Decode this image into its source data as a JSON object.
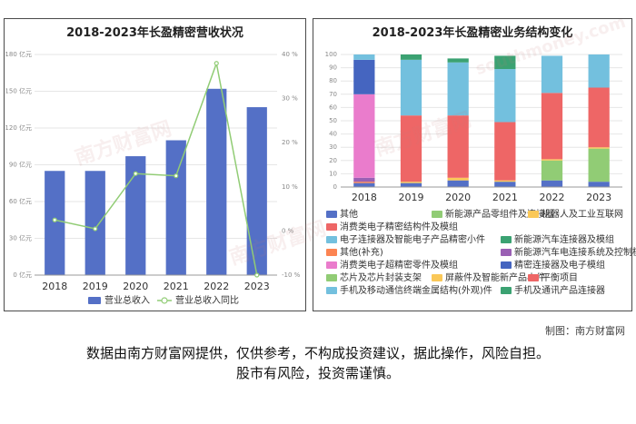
{
  "watermark": {
    "text": "南方财富网",
    "sub": "southmoney.com"
  },
  "left_chart": {
    "title": "2018-2023年长盈精密营收状况",
    "legend": [
      "营业总收入",
      "营业总收入同比"
    ],
    "left_ticks": [
      "0 亿元",
      "30 亿元",
      "60 亿元",
      "90 亿元",
      "120 亿元",
      "150 亿元",
      "180 亿元"
    ],
    "right_ticks": [
      "-10 %",
      "0 %",
      "10 %",
      "20 %",
      "30 %",
      "40 %"
    ]
  },
  "right_chart": {
    "title": "2018-2023年长盈精密业务结构变化",
    "y_ticks": [
      "0",
      "10",
      "20",
      "30",
      "40",
      "50",
      "60",
      "70",
      "80",
      "90",
      "100"
    ],
    "legend_rows": [
      [
        "其他",
        "新能源产品零组件及连接器",
        "机器人及工业互联网"
      ],
      [
        "消费类电子精密结构件及模组"
      ],
      [
        "电子连接器及智能电子产品精密小件",
        "新能源汽车连接器及模组"
      ],
      [
        "其他(补充)",
        "新能源汽车电连接系统及控制模组"
      ],
      [
        "消费类电子超精密零件及模组",
        "精密连接器及电子模组"
      ],
      [
        "芯片及芯片封装支架",
        "屏蔽件及智能新产品小件",
        "平衡项目"
      ],
      [
        "手机及移动通信终端金属结构(外观)件",
        "手机及通讯产品连接器"
      ]
    ]
  },
  "chart_data": [
    {
      "type": "bar",
      "title": "2018-2023年长盈精密营收状况",
      "categories": [
        "2018",
        "2019",
        "2020",
        "2021",
        "2022",
        "2023"
      ],
      "series": [
        {
          "name": "营业总收入",
          "type": "bar",
          "axis": "left",
          "unit": "亿元",
          "color": "#5470c6",
          "values": [
            85,
            85,
            97,
            110,
            152,
            137
          ]
        },
        {
          "name": "营业总收入同比",
          "type": "line",
          "axis": "right",
          "unit": "%",
          "color": "#91cc75",
          "values": [
            2.5,
            0.5,
            13,
            12.5,
            38,
            -10
          ]
        }
      ],
      "ylim_left": [
        0,
        180
      ],
      "ylim_right": [
        -10,
        40
      ],
      "grid": true,
      "legend_position": "bottom"
    },
    {
      "type": "bar",
      "stacked": true,
      "title": "2018-2023年长盈精密业务结构变化",
      "categories": [
        "2018",
        "2019",
        "2020",
        "2021",
        "2022",
        "2023"
      ],
      "ylim": [
        0,
        100
      ],
      "legend_position": "bottom",
      "series": [
        {
          "name": "其他",
          "color": "#5470c6",
          "values": [
            3,
            3,
            5,
            4,
            5,
            4
          ]
        },
        {
          "name": "新能源产品零组件及连接器",
          "color": "#91cc75",
          "values": [
            0,
            0,
            0,
            0,
            15,
            25
          ]
        },
        {
          "name": "机器人及工业互联网",
          "color": "#fac858",
          "values": [
            0,
            1,
            2,
            1,
            1,
            1
          ]
        },
        {
          "name": "消费类电子精密结构件及模组",
          "color": "#ee6666",
          "values": [
            0,
            50,
            47,
            44,
            50,
            45
          ]
        },
        {
          "name": "电子连接器及智能电子产品精密小件",
          "color": "#73c0de",
          "values": [
            0,
            42,
            40,
            40,
            28,
            25
          ]
        },
        {
          "name": "新能源汽车连接器及模组",
          "color": "#3ba272",
          "values": [
            0,
            4,
            3,
            10,
            0,
            0
          ]
        },
        {
          "name": "其他(补充)",
          "color": "#fc8452",
          "values": [
            1,
            0,
            0,
            0,
            0,
            0
          ]
        },
        {
          "name": "新能源汽车电连接系统及控制模组",
          "color": "#9a60b4",
          "values": [
            3,
            0,
            0,
            0,
            0,
            0
          ]
        },
        {
          "name": "消费类电子超精密零件及模组",
          "color": "#ea7ccc",
          "values": [
            63,
            0,
            0,
            0,
            0,
            0
          ]
        },
        {
          "name": "精密连接器及电子模组",
          "color": "#4565c0",
          "values": [
            26,
            0,
            0,
            0,
            0,
            0
          ]
        },
        {
          "name": "芯片及芯片封装支架",
          "color": "#91cc75",
          "values": [
            0,
            0,
            0,
            0,
            0,
            0
          ]
        },
        {
          "name": "屏蔽件及智能新产品小件",
          "color": "#fac858",
          "values": [
            0,
            0,
            0,
            0,
            0,
            0
          ]
        },
        {
          "name": "平衡项目",
          "color": "#ee6666",
          "values": [
            0,
            0,
            0,
            0,
            0,
            0
          ]
        },
        {
          "name": "手机及移动通信终端金属结构(外观)件",
          "color": "#73c0de",
          "values": [
            4,
            0,
            0,
            0,
            0,
            0
          ]
        },
        {
          "name": "手机及通讯产品连接器",
          "color": "#3ba272",
          "values": [
            0,
            0,
            0,
            0,
            0,
            0
          ]
        }
      ]
    }
  ],
  "footer": {
    "source": "制图：南方财富网",
    "disclaimer_1": "数据由南方财富网提供，仅供参考，不构成投资建议，据此操作，风险自担。",
    "disclaimer_2": "股市有风险，投资需谨慎。"
  }
}
